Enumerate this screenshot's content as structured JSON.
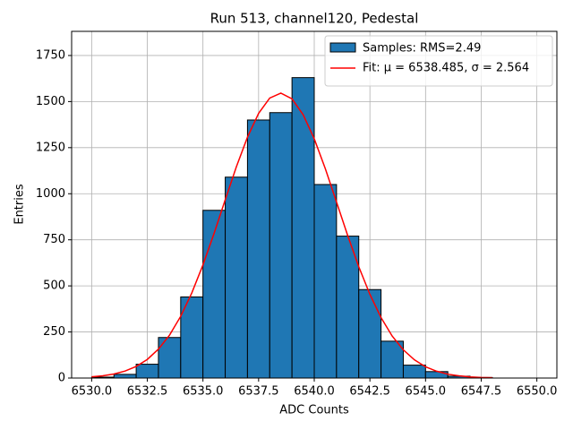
{
  "chart_data": {
    "type": "histogram",
    "title": "Run 513, channel120, Pedestal",
    "xlabel": "ADC Counts",
    "ylabel": "Entries",
    "bins": [
      6530,
      6531,
      6532,
      6533,
      6534,
      6535,
      6536,
      6537,
      6538,
      6539,
      6540,
      6541,
      6542,
      6543,
      6544,
      6545,
      6546,
      6547,
      6548
    ],
    "counts": [
      5,
      20,
      75,
      220,
      440,
      910,
      1090,
      1400,
      1440,
      1630,
      1050,
      770,
      480,
      200,
      70,
      35,
      10,
      3
    ],
    "hist_name": "Samples: RMS=2.49",
    "color": "#1f77b4",
    "edgecolor": "#000000",
    "series": [
      {
        "name": "Fit: μ = 6538.485, σ = 2.564",
        "color": "#ff0000",
        "x": [
          6530,
          6530.5,
          6531,
          6531.5,
          6532,
          6532.5,
          6533,
          6533.5,
          6534,
          6534.5,
          6535,
          6535.5,
          6536,
          6536.5,
          6537,
          6537.5,
          6538,
          6538.5,
          6539,
          6539.5,
          6540,
          6540.5,
          6541,
          6541.5,
          6542,
          6542.5,
          6543,
          6543.5,
          6544,
          6544.5,
          6545,
          6545.5,
          6546,
          6546.5,
          6547,
          6547.5,
          6548
        ],
        "values": [
          6.5,
          12,
          22,
          38,
          63,
          101,
          157,
          233,
          335,
          462,
          614,
          785,
          967,
          1146,
          1307,
          1436,
          1519,
          1546,
          1515,
          1429,
          1298,
          1135,
          955,
          774,
          604,
          454,
          328,
          228,
          153,
          99,
          61,
          37,
          21,
          12,
          6.2,
          3.2,
          1.6
        ]
      }
    ],
    "xlim": [
      6529.1,
      6550.9
    ],
    "ylim": [
      0,
      1881
    ],
    "xticks": [
      {
        "value": 6530,
        "label": "6530.0"
      },
      {
        "value": 6532.5,
        "label": "6532.5"
      },
      {
        "value": 6535,
        "label": "6535.0"
      },
      {
        "value": 6537.5,
        "label": "6537.5"
      },
      {
        "value": 6540,
        "label": "6540.0"
      },
      {
        "value": 6542.5,
        "label": "6542.5"
      },
      {
        "value": 6545,
        "label": "6545.0"
      },
      {
        "value": 6547.5,
        "label": "6547.5"
      },
      {
        "value": 6550,
        "label": "6550.0"
      }
    ],
    "yticks": [
      0,
      250,
      500,
      750,
      1000,
      1250,
      1500,
      1750
    ],
    "grid": true,
    "legend": "upper right"
  }
}
